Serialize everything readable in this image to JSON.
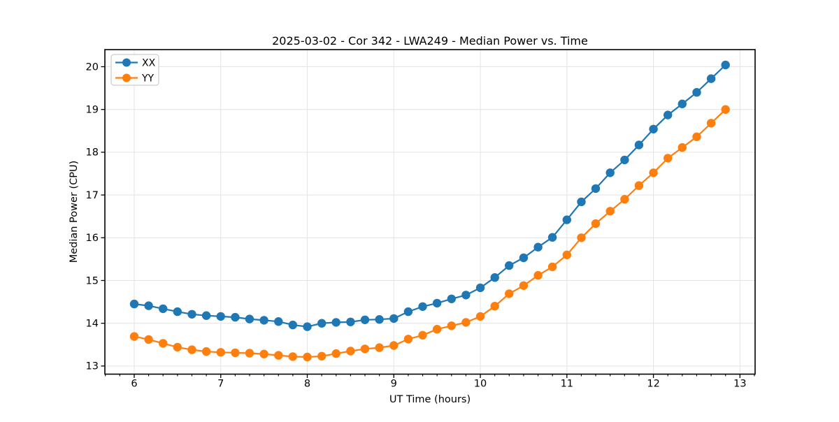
{
  "window": {
    "background": "#ffffff"
  },
  "colors": {
    "series_xx": "#1f77b4",
    "series_yy": "#ff7f0e",
    "grid": "#e5e5e5",
    "spine": "#000000",
    "legend_border": "#cccccc",
    "legend_background": "#ffffff",
    "text": "#000000"
  },
  "chart_data": {
    "type": "line",
    "title": "2025-03-02 - Cor 342 - LWA249 - Median Power vs. Time",
    "xlabel": "UT Time (hours)",
    "ylabel": "Median Power (CPU)",
    "xlim": [
      5.661,
      13.175
    ],
    "ylim": [
      12.81,
      20.4
    ],
    "xticks": [
      6,
      7,
      8,
      9,
      10,
      11,
      12,
      13
    ],
    "yticks": [
      13,
      14,
      15,
      16,
      17,
      18,
      19,
      20
    ],
    "x_minor_step_hours": 0.1667,
    "grid": true,
    "legend_position": "upper left",
    "x": [
      6.0,
      6.167,
      6.333,
      6.5,
      6.667,
      6.833,
      7.0,
      7.167,
      7.333,
      7.5,
      7.667,
      7.833,
      8.0,
      8.167,
      8.333,
      8.5,
      8.667,
      8.833,
      9.0,
      9.167,
      9.333,
      9.5,
      9.667,
      9.833,
      10.0,
      10.167,
      10.333,
      10.5,
      10.667,
      10.833,
      11.0,
      11.167,
      11.333,
      11.5,
      11.667,
      11.833,
      12.0,
      12.167,
      12.333,
      12.5,
      12.667,
      12.833
    ],
    "series": [
      {
        "name": "XX",
        "color": "#1f77b4",
        "marker": "circle",
        "values": [
          14.45,
          14.41,
          14.34,
          14.27,
          14.21,
          14.18,
          14.16,
          14.14,
          14.1,
          14.07,
          14.04,
          13.96,
          13.92,
          14.0,
          14.02,
          14.03,
          14.08,
          14.09,
          14.11,
          14.27,
          14.39,
          14.47,
          14.57,
          14.66,
          14.83,
          15.07,
          15.35,
          15.53,
          15.78,
          16.01,
          16.42,
          16.84,
          17.15,
          17.52,
          17.82,
          18.17,
          18.54,
          18.87,
          19.13,
          19.4,
          19.72,
          20.04
        ]
      },
      {
        "name": "YY",
        "color": "#ff7f0e",
        "marker": "circle",
        "values": [
          13.69,
          13.62,
          13.53,
          13.44,
          13.38,
          13.34,
          13.32,
          13.31,
          13.3,
          13.28,
          13.25,
          13.22,
          13.21,
          13.23,
          13.29,
          13.35,
          13.4,
          13.43,
          13.48,
          13.63,
          13.72,
          13.86,
          13.94,
          14.02,
          14.16,
          14.4,
          14.69,
          14.88,
          15.12,
          15.32,
          15.6,
          16.0,
          16.33,
          16.62,
          16.9,
          17.22,
          17.52,
          17.86,
          18.11,
          18.36,
          18.68,
          19.0
        ]
      }
    ]
  }
}
